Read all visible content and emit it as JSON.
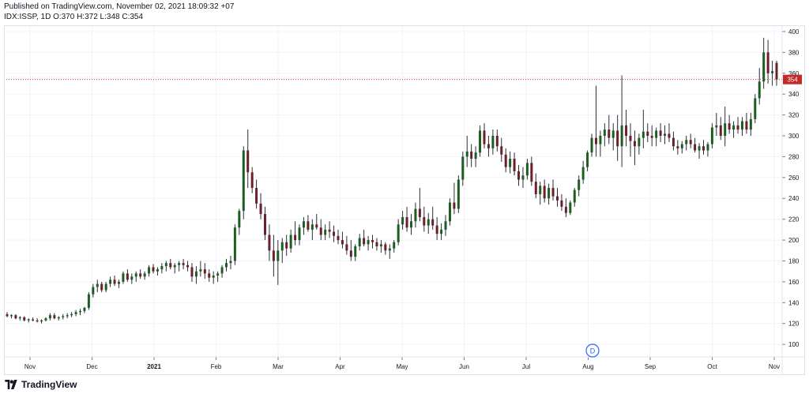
{
  "header": {
    "published": "Published on TradingView.com, November 02, 2021 18:09:32 +07",
    "symbol_line": "IDX:ISSP, 1D O:370 H:372 L:348 C:354"
  },
  "brand": {
    "name": "TradingView",
    "icon": "tradingview-logo-icon"
  },
  "colors": {
    "up": "#26a69a",
    "down": "#ef5350",
    "upBody": "#1b5e20",
    "downBody": "#6b1f2a",
    "grid": "#f0f3fa",
    "axis": "#787b86",
    "lastLine": "#e53935",
    "lastBadge": "#c62828",
    "marker": "#2962ff"
  },
  "chart_data": {
    "type": "candlestick",
    "ylim": [
      88,
      406
    ],
    "y_ticks": [
      100,
      120,
      140,
      160,
      180,
      200,
      220,
      240,
      260,
      280,
      300,
      320,
      340,
      360,
      380,
      400
    ],
    "x_labels": [
      "Nov",
      "Dec",
      "2021",
      "Feb",
      "Mar",
      "Apr",
      "May",
      "Jun",
      "Jul",
      "Aug",
      "Sep",
      "Oct",
      "Nov"
    ],
    "last_price": 354,
    "last_price_label": "354",
    "event_marker": "D",
    "grid": true,
    "ohlc": [
      [
        129,
        131,
        126,
        127
      ],
      [
        127,
        129,
        125,
        128
      ],
      [
        128,
        129,
        124,
        125
      ],
      [
        125,
        127,
        123,
        126
      ],
      [
        126,
        127,
        122,
        123
      ],
      [
        123,
        125,
        121,
        124
      ],
      [
        124,
        126,
        122,
        123
      ],
      [
        123,
        125,
        121,
        122
      ],
      [
        122,
        124,
        120,
        123
      ],
      [
        123,
        126,
        122,
        125
      ],
      [
        125,
        130,
        123,
        128
      ],
      [
        128,
        130,
        124,
        125
      ],
      [
        125,
        127,
        123,
        126
      ],
      [
        126,
        129,
        124,
        127
      ],
      [
        127,
        130,
        125,
        128
      ],
      [
        128,
        131,
        126,
        129
      ],
      [
        129,
        133,
        127,
        131
      ],
      [
        131,
        134,
        128,
        132
      ],
      [
        132,
        136,
        130,
        135
      ],
      [
        135,
        150,
        133,
        148
      ],
      [
        148,
        158,
        145,
        155
      ],
      [
        155,
        162,
        150,
        158
      ],
      [
        158,
        160,
        150,
        152
      ],
      [
        152,
        160,
        150,
        158
      ],
      [
        158,
        165,
        155,
        162
      ],
      [
        162,
        166,
        156,
        158
      ],
      [
        158,
        162,
        154,
        160
      ],
      [
        160,
        170,
        158,
        168
      ],
      [
        168,
        172,
        160,
        162
      ],
      [
        162,
        168,
        158,
        165
      ],
      [
        165,
        170,
        160,
        168
      ],
      [
        168,
        172,
        163,
        165
      ],
      [
        165,
        170,
        162,
        168
      ],
      [
        168,
        176,
        165,
        174
      ],
      [
        174,
        177,
        168,
        170
      ],
      [
        170,
        174,
        166,
        172
      ],
      [
        172,
        178,
        168,
        175
      ],
      [
        175,
        180,
        170,
        178
      ],
      [
        178,
        182,
        172,
        174
      ],
      [
        174,
        178,
        168,
        176
      ],
      [
        176,
        180,
        170,
        178
      ],
      [
        178,
        182,
        172,
        176
      ],
      [
        176,
        180,
        170,
        174
      ],
      [
        174,
        178,
        160,
        165
      ],
      [
        165,
        175,
        158,
        170
      ],
      [
        170,
        180,
        165,
        172
      ],
      [
        172,
        178,
        163,
        168
      ],
      [
        168,
        172,
        160,
        164
      ],
      [
        164,
        170,
        158,
        166
      ],
      [
        166,
        170,
        160,
        168
      ],
      [
        168,
        176,
        164,
        174
      ],
      [
        174,
        182,
        170,
        178
      ],
      [
        178,
        185,
        172,
        180
      ],
      [
        180,
        215,
        176,
        212
      ],
      [
        212,
        230,
        205,
        228
      ],
      [
        228,
        290,
        220,
        286
      ],
      [
        286,
        306,
        250,
        265
      ],
      [
        265,
        270,
        245,
        250
      ],
      [
        250,
        258,
        230,
        235
      ],
      [
        235,
        245,
        220,
        225
      ],
      [
        225,
        232,
        200,
        205
      ],
      [
        205,
        215,
        180,
        190
      ],
      [
        190,
        205,
        165,
        180
      ],
      [
        180,
        200,
        157,
        190
      ],
      [
        190,
        202,
        178,
        198
      ],
      [
        198,
        205,
        185,
        192
      ],
      [
        192,
        210,
        188,
        205
      ],
      [
        205,
        218,
        195,
        200
      ],
      [
        200,
        215,
        195,
        212
      ],
      [
        212,
        222,
        205,
        218
      ],
      [
        218,
        224,
        208,
        210
      ],
      [
        210,
        220,
        200,
        215
      ],
      [
        215,
        225,
        210,
        212
      ],
      [
        212,
        220,
        200,
        205
      ],
      [
        205,
        215,
        200,
        210
      ],
      [
        210,
        218,
        202,
        208
      ],
      [
        208,
        214,
        198,
        204
      ],
      [
        204,
        210,
        196,
        200
      ],
      [
        200,
        208,
        192,
        196
      ],
      [
        196,
        204,
        186,
        190
      ],
      [
        190,
        200,
        180,
        184
      ],
      [
        184,
        196,
        180,
        194
      ],
      [
        194,
        206,
        190,
        202
      ],
      [
        202,
        210,
        194,
        196
      ],
      [
        196,
        204,
        190,
        200
      ],
      [
        200,
        205,
        192,
        198
      ],
      [
        198,
        202,
        190,
        194
      ],
      [
        194,
        200,
        188,
        196
      ],
      [
        196,
        198,
        186,
        190
      ],
      [
        190,
        196,
        182,
        192
      ],
      [
        192,
        200,
        188,
        198
      ],
      [
        198,
        220,
        195,
        215
      ],
      [
        215,
        228,
        210,
        222
      ],
      [
        222,
        232,
        208,
        212
      ],
      [
        212,
        225,
        205,
        218
      ],
      [
        218,
        236,
        212,
        230
      ],
      [
        230,
        250,
        218,
        222
      ],
      [
        222,
        232,
        208,
        214
      ],
      [
        214,
        226,
        206,
        220
      ],
      [
        220,
        232,
        210,
        214
      ],
      [
        214,
        222,
        200,
        206
      ],
      [
        206,
        216,
        200,
        210
      ],
      [
        210,
        224,
        204,
        218
      ],
      [
        218,
        240,
        214,
        236
      ],
      [
        236,
        255,
        225,
        230
      ],
      [
        230,
        262,
        226,
        258
      ],
      [
        258,
        285,
        252,
        280
      ],
      [
        280,
        300,
        270,
        285
      ],
      [
        285,
        292,
        270,
        278
      ],
      [
        278,
        290,
        270,
        284
      ],
      [
        284,
        310,
        280,
        305
      ],
      [
        305,
        312,
        288,
        292
      ],
      [
        292,
        300,
        280,
        288
      ],
      [
        288,
        306,
        282,
        300
      ],
      [
        300,
        306,
        285,
        290
      ],
      [
        290,
        298,
        275,
        282
      ],
      [
        282,
        288,
        265,
        270
      ],
      [
        270,
        285,
        264,
        278
      ],
      [
        278,
        284,
        262,
        266
      ],
      [
        266,
        272,
        252,
        258
      ],
      [
        258,
        270,
        250,
        262
      ],
      [
        262,
        278,
        258,
        274
      ],
      [
        274,
        280,
        252,
        256
      ],
      [
        256,
        264,
        240,
        244
      ],
      [
        244,
        256,
        234,
        252
      ],
      [
        252,
        258,
        236,
        240
      ],
      [
        240,
        254,
        234,
        250
      ],
      [
        250,
        258,
        238,
        242
      ],
      [
        242,
        250,
        232,
        238
      ],
      [
        238,
        244,
        228,
        232
      ],
      [
        232,
        240,
        222,
        226
      ],
      [
        226,
        238,
        224,
        236
      ],
      [
        236,
        250,
        232,
        248
      ],
      [
        248,
        262,
        242,
        258
      ],
      [
        258,
        276,
        254,
        270
      ],
      [
        270,
        286,
        266,
        284
      ],
      [
        284,
        302,
        280,
        298
      ],
      [
        298,
        348,
        280,
        292
      ],
      [
        292,
        305,
        280,
        300
      ],
      [
        300,
        312,
        290,
        306
      ],
      [
        306,
        320,
        292,
        298
      ],
      [
        298,
        312,
        286,
        305
      ],
      [
        305,
        320,
        276,
        290
      ],
      [
        290,
        358,
        270,
        310
      ],
      [
        310,
        325,
        290,
        300
      ],
      [
        300,
        312,
        280,
        295
      ],
      [
        295,
        305,
        272,
        290
      ],
      [
        290,
        302,
        282,
        298
      ],
      [
        298,
        325,
        288,
        304
      ],
      [
        304,
        312,
        294,
        300
      ],
      [
        300,
        310,
        290,
        298
      ],
      [
        298,
        308,
        290,
        305
      ],
      [
        305,
        312,
        294,
        300
      ],
      [
        300,
        310,
        292,
        302
      ],
      [
        302,
        312,
        294,
        298
      ],
      [
        298,
        304,
        286,
        290
      ],
      [
        290,
        296,
        282,
        288
      ],
      [
        288,
        295,
        283,
        292
      ],
      [
        292,
        300,
        286,
        296
      ],
      [
        296,
        302,
        288,
        292
      ],
      [
        292,
        298,
        284,
        286
      ],
      [
        286,
        293,
        278,
        290
      ],
      [
        290,
        296,
        282,
        286
      ],
      [
        286,
        294,
        280,
        292
      ],
      [
        292,
        312,
        288,
        308
      ],
      [
        308,
        322,
        300,
        310
      ],
      [
        310,
        318,
        296,
        300
      ],
      [
        300,
        328,
        290,
        312
      ],
      [
        312,
        320,
        302,
        306
      ],
      [
        306,
        314,
        298,
        310
      ],
      [
        310,
        318,
        302,
        306
      ],
      [
        306,
        318,
        300,
        314
      ],
      [
        314,
        322,
        302,
        306
      ],
      [
        306,
        322,
        300,
        316
      ],
      [
        316,
        340,
        312,
        336
      ],
      [
        336,
        365,
        330,
        352
      ],
      [
        352,
        394,
        345,
        380
      ],
      [
        380,
        392,
        350,
        360
      ],
      [
        360,
        372,
        348,
        362
      ],
      [
        370,
        372,
        348,
        354
      ]
    ]
  }
}
